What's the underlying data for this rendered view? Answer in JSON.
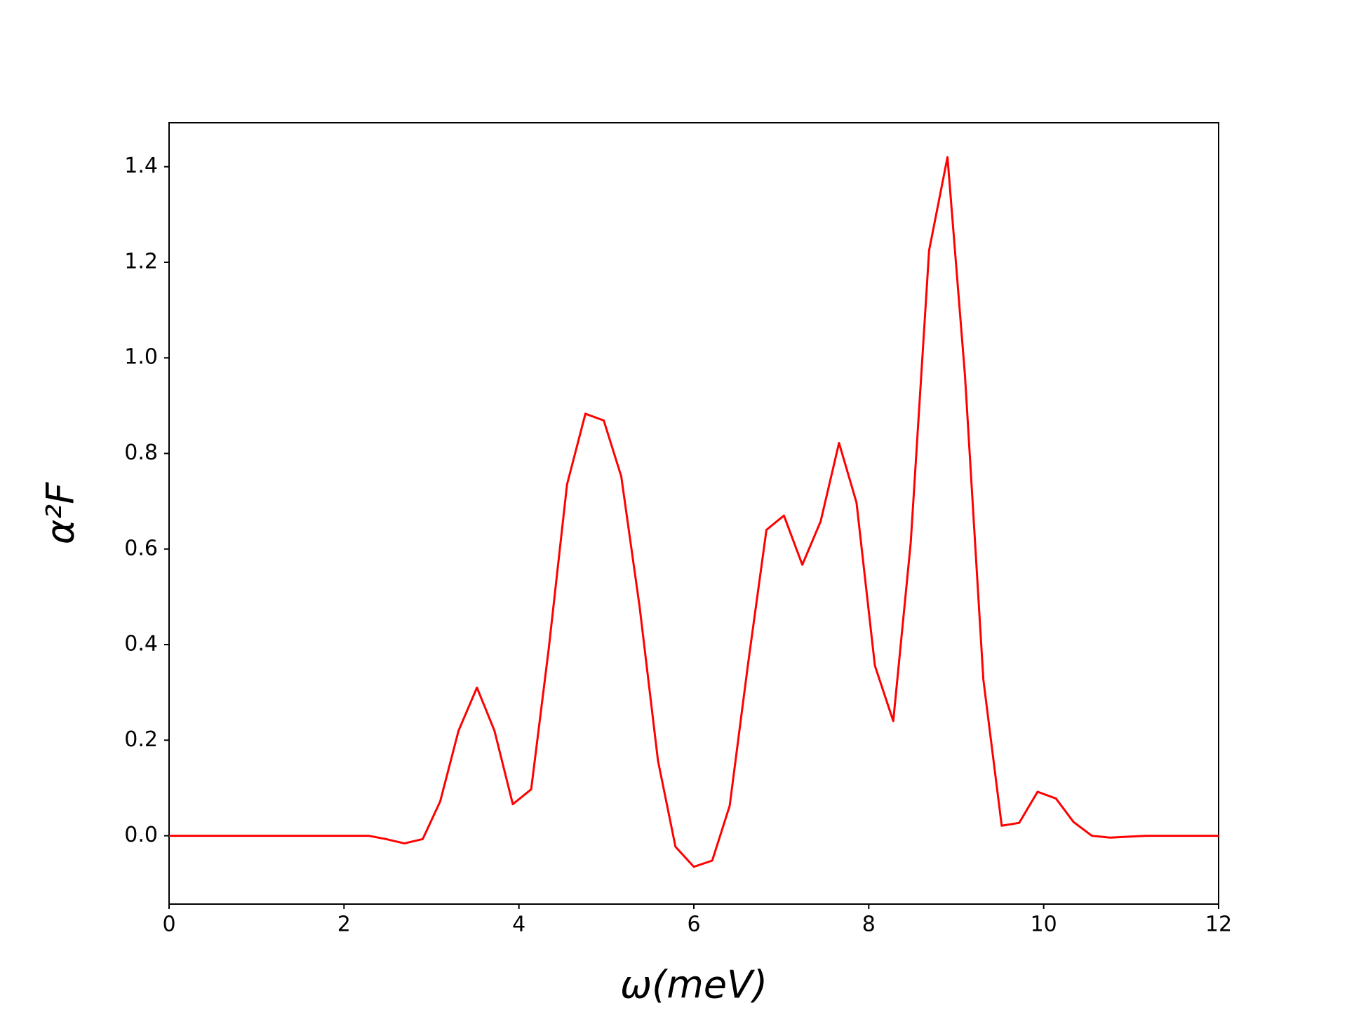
{
  "chart_data": {
    "type": "line",
    "x_label": "ω(meV)",
    "y_label": "α²F",
    "x": [
      0,
      0.21,
      0.41,
      0.62,
      0.83,
      1.03,
      1.24,
      1.45,
      1.66,
      1.86,
      2.07,
      2.28,
      2.48,
      2.69,
      2.9,
      3.1,
      3.31,
      3.52,
      3.72,
      3.93,
      4.14,
      4.34,
      4.55,
      4.76,
      4.97,
      5.17,
      5.38,
      5.59,
      5.79,
      6.0,
      6.21,
      6.41,
      6.62,
      6.83,
      7.03,
      7.24,
      7.45,
      7.66,
      7.86,
      8.07,
      8.28,
      8.48,
      8.69,
      8.9,
      9.1,
      9.31,
      9.52,
      9.72,
      9.93,
      10.14,
      10.34,
      10.55,
      10.76,
      10.97,
      11.17,
      11.38,
      11.59,
      11.79,
      12.0
    ],
    "series": [
      {
        "name": "α²F",
        "color": "#ff0000",
        "values": [
          0,
          0,
          0,
          0,
          0,
          0,
          0,
          0,
          0,
          0,
          0,
          0,
          -0.007,
          -0.016,
          -0.007,
          0.072,
          0.22,
          0.31,
          0.22,
          0.066,
          0.097,
          0.39,
          0.735,
          0.883,
          0.869,
          0.752,
          0.479,
          0.157,
          -0.023,
          -0.065,
          -0.052,
          0.063,
          0.36,
          0.64,
          0.67,
          0.567,
          0.658,
          0.822,
          0.697,
          0.356,
          0.24,
          0.614,
          1.225,
          1.42,
          0.963,
          0.327,
          0.021,
          0.027,
          0.092,
          0.078,
          0.029,
          0,
          -0.004,
          -0.002,
          0,
          0,
          0,
          0,
          0
        ]
      }
    ],
    "xlim": [
      0,
      12
    ],
    "ylim": [
      -0.143,
      1.492
    ],
    "xticks": [
      0,
      2,
      4,
      6,
      8,
      10,
      12
    ],
    "yticks": [
      {
        "value": 0,
        "label": "0.0"
      },
      0.2,
      0.4,
      0.6,
      0.8,
      {
        "value": 1,
        "label": "1.0"
      },
      1.2,
      1.4
    ],
    "grid": false
  }
}
